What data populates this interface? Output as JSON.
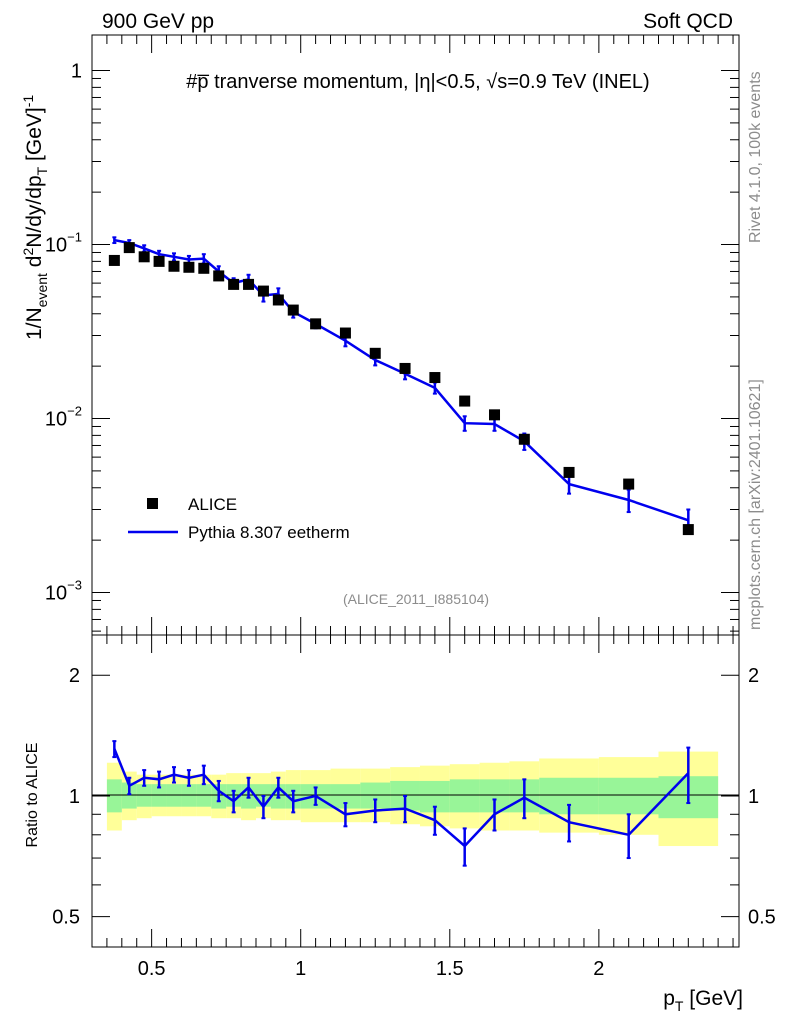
{
  "header": {
    "left": "900 GeV pp",
    "right": "Soft QCD"
  },
  "side_labels": {
    "version": "Rivet 4.1.0,  100k events",
    "source": "mcplots.cern.ch [arXiv:2401.10621]"
  },
  "chart_data": [
    {
      "type": "scatter",
      "panel": "main",
      "title": "#p̅ tranverse momentum, |η|<0.5, √s=0.9 TeV (INEL)",
      "analysis_id": "(ALICE_2011_I885104)",
      "ylabel": "1/N_event d²N/dy/dp_T [GeV]⁻¹",
      "xlabel": "p_T [GeV]",
      "y_scale": "log",
      "xlim": [
        0.3,
        2.47
      ],
      "ylim": [
        0.00057,
        1.6
      ],
      "y_ticks": [
        {
          "value": 1,
          "base": "1",
          "exp": ""
        },
        {
          "value": 0.1,
          "base": "10",
          "exp": "−1"
        },
        {
          "value": 0.01,
          "base": "10",
          "exp": "−2"
        },
        {
          "value": 0.001,
          "base": "10",
          "exp": "−3"
        }
      ],
      "legend": [
        {
          "label": "ALICE",
          "marker": "square",
          "color": "#000000"
        },
        {
          "label": "Pythia 8.307 eetherm",
          "marker": "line",
          "color": "#0000ee"
        }
      ],
      "series": [
        {
          "name": "ALICE",
          "color": "#000000",
          "x": [
            0.375,
            0.425,
            0.475,
            0.525,
            0.575,
            0.625,
            0.675,
            0.725,
            0.775,
            0.825,
            0.875,
            0.925,
            0.975,
            1.05,
            1.15,
            1.25,
            1.35,
            1.45,
            1.55,
            1.65,
            1.75,
            1.9,
            2.1,
            2.3
          ],
          "y": [
            0.081,
            0.096,
            0.085,
            0.08,
            0.075,
            0.074,
            0.073,
            0.066,
            0.059,
            0.059,
            0.054,
            0.048,
            0.042,
            0.035,
            0.031,
            0.0237,
            0.0194,
            0.0172,
            0.0126,
            0.0105,
            0.0076,
            0.0049,
            0.0042,
            0.0023
          ]
        },
        {
          "name": "Pythia 8.307 eetherm",
          "color": "#0000ee",
          "x": [
            0.375,
            0.425,
            0.475,
            0.525,
            0.575,
            0.625,
            0.675,
            0.725,
            0.775,
            0.825,
            0.875,
            0.925,
            0.975,
            1.05,
            1.15,
            1.25,
            1.35,
            1.45,
            1.55,
            1.65,
            1.75,
            1.9,
            2.1,
            2.3
          ],
          "y": [
            0.106,
            0.102,
            0.095,
            0.088,
            0.085,
            0.082,
            0.083,
            0.07,
            0.06,
            0.063,
            0.051,
            0.052,
            0.041,
            0.035,
            0.028,
            0.0217,
            0.0181,
            0.015,
            0.0094,
            0.0093,
            0.0074,
            0.0042,
            0.0034,
            0.0026
          ],
          "err_up": [
            0.004,
            0.004,
            0.004,
            0.004,
            0.004,
            0.004,
            0.005,
            0.005,
            0.004,
            0.004,
            0.004,
            0.004,
            0.003,
            0.002,
            0.002,
            0.0015,
            0.0013,
            0.0011,
            0.0009,
            0.0008,
            0.0008,
            0.0005,
            0.0005,
            0.0004
          ],
          "err_down": [
            0.004,
            0.004,
            0.004,
            0.004,
            0.004,
            0.004,
            0.005,
            0.005,
            0.004,
            0.004,
            0.004,
            0.004,
            0.003,
            0.002,
            0.002,
            0.0015,
            0.0013,
            0.0011,
            0.0009,
            0.0008,
            0.0008,
            0.0005,
            0.0005,
            0.0004
          ]
        }
      ]
    },
    {
      "type": "line",
      "panel": "ratio",
      "ylabel": "Ratio to ALICE",
      "xlabel": "p_T [GeV]",
      "y_scale": "log",
      "xlim": [
        0.3,
        2.47
      ],
      "ylim": [
        0.42,
        2.52
      ],
      "x_ticks": [
        0.5,
        1,
        1.5,
        2
      ],
      "x_tick_labels": [
        "0.5",
        "1",
        "1.5",
        "2"
      ],
      "y_ticks": [
        2,
        1,
        0.5
      ],
      "y_tick_labels": [
        "2",
        "1",
        "0.5"
      ],
      "bands": {
        "bin_edges": [
          0.35,
          0.4,
          0.45,
          0.5,
          0.55,
          0.6,
          0.65,
          0.7,
          0.75,
          0.8,
          0.85,
          0.9,
          0.95,
          1.0,
          1.1,
          1.2,
          1.3,
          1.4,
          1.5,
          1.6,
          1.7,
          1.8,
          2.0,
          2.2,
          2.4
        ],
        "inner_color": "#98f598",
        "outer_color": "#ffff99",
        "inner_low": [
          0.91,
          0.93,
          0.94,
          0.94,
          0.94,
          0.94,
          0.94,
          0.93,
          0.94,
          0.93,
          0.94,
          0.93,
          0.93,
          0.93,
          0.93,
          0.93,
          0.92,
          0.91,
          0.91,
          0.91,
          0.91,
          0.9,
          0.9,
          0.88
        ],
        "inner_high": [
          1.1,
          1.08,
          1.07,
          1.07,
          1.07,
          1.07,
          1.07,
          1.07,
          1.07,
          1.07,
          1.07,
          1.07,
          1.07,
          1.07,
          1.07,
          1.08,
          1.09,
          1.09,
          1.1,
          1.1,
          1.1,
          1.11,
          1.11,
          1.12
        ],
        "outer_low": [
          0.82,
          0.87,
          0.88,
          0.89,
          0.89,
          0.89,
          0.89,
          0.88,
          0.88,
          0.87,
          0.88,
          0.87,
          0.87,
          0.86,
          0.86,
          0.86,
          0.85,
          0.84,
          0.83,
          0.82,
          0.82,
          0.81,
          0.8,
          0.75
        ],
        "outer_high": [
          1.21,
          1.15,
          1.13,
          1.13,
          1.13,
          1.13,
          1.13,
          1.13,
          1.14,
          1.14,
          1.14,
          1.15,
          1.16,
          1.16,
          1.17,
          1.17,
          1.18,
          1.19,
          1.2,
          1.21,
          1.22,
          1.24,
          1.25,
          1.29
        ]
      },
      "series": [
        {
          "name": "Pythia 8.307 eetherm / ALICE",
          "color": "#0000ee",
          "x": [
            0.375,
            0.425,
            0.475,
            0.525,
            0.575,
            0.625,
            0.675,
            0.725,
            0.775,
            0.825,
            0.875,
            0.925,
            0.975,
            1.05,
            1.15,
            1.25,
            1.35,
            1.45,
            1.55,
            1.65,
            1.75,
            1.9,
            2.1,
            2.3
          ],
          "y": [
            1.31,
            1.06,
            1.11,
            1.1,
            1.13,
            1.11,
            1.13,
            1.03,
            0.97,
            1.05,
            0.94,
            1.05,
            0.97,
            1.0,
            0.9,
            0.92,
            0.93,
            0.87,
            0.75,
            0.9,
            0.99,
            0.86,
            0.8,
            1.14
          ],
          "err": [
            0.06,
            0.05,
            0.05,
            0.05,
            0.05,
            0.05,
            0.06,
            0.06,
            0.06,
            0.06,
            0.06,
            0.06,
            0.06,
            0.05,
            0.06,
            0.06,
            0.07,
            0.07,
            0.08,
            0.08,
            0.11,
            0.09,
            0.1,
            0.18
          ]
        }
      ]
    }
  ]
}
